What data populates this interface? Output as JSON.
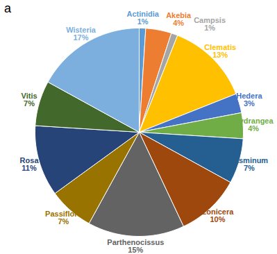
{
  "chart_data": {
    "type": "pie",
    "title": "a",
    "categories": [
      "Actinidia",
      "Akebia",
      "Campsis",
      "Clematis",
      "Hedera",
      "Hydrangea",
      "Jasminum",
      "Lonicera",
      "Parthenocissus",
      "Passiflora",
      "Rosa",
      "Vitis",
      "Wisteria"
    ],
    "values": [
      1,
      4,
      1,
      13,
      3,
      4,
      7,
      10,
      15,
      7,
      11,
      7,
      17
    ],
    "value_labels": [
      "1%",
      "4%",
      "1%",
      "13%",
      "3%",
      "4%",
      "7%",
      "10%",
      "15%",
      "7%",
      "11%",
      "7%",
      "17%"
    ],
    "colors": [
      "#5b9bd5",
      "#ed7d31",
      "#a5a5a5",
      "#ffc000",
      "#4472c4",
      "#70ad47",
      "#255e91",
      "#9e480e",
      "#636363",
      "#997300",
      "#264478",
      "#43682b",
      "#7cafdd"
    ],
    "data_labels": true
  }
}
